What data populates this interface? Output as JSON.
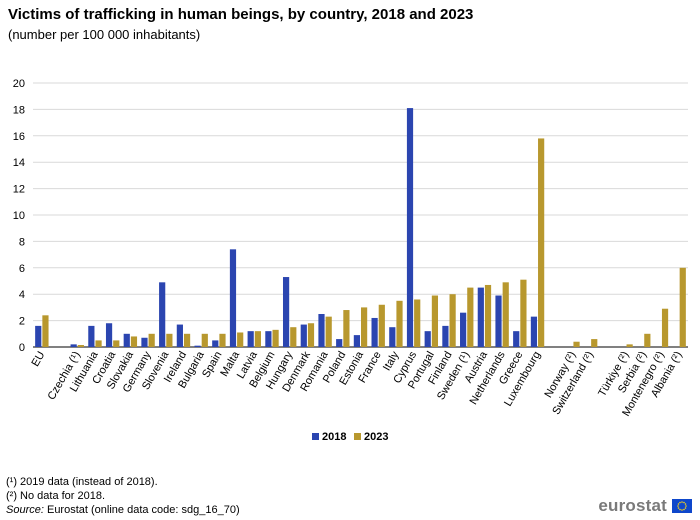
{
  "title": "Victims of trafficking in human beings, by country, 2018 and 2023",
  "subtitle": "(number  per 100 000 inhabitants)",
  "notes": {
    "note1": "(¹) 2019 data (instead of 2018).",
    "note2": "(²) No data for 2018.",
    "source_label": "Source:",
    "source_text": " Eurostat (online data code: sdg_16_70)"
  },
  "logo": {
    "text": "eurostat",
    "flag_icon": "eu-flag-icon"
  },
  "colors": {
    "s2018": "#2b45b0",
    "s2023": "#b8982e",
    "grid": "#d9d9d9",
    "axis": "#000000"
  },
  "chart_data": {
    "type": "bar",
    "title": "Victims of trafficking in human beings, by country, 2018 and 2023",
    "ylabel": "number per 100 000 inhabitants",
    "ylim": [
      0,
      20
    ],
    "yticks": [
      0,
      2,
      4,
      6,
      8,
      10,
      12,
      14,
      16,
      18,
      20
    ],
    "grid": true,
    "legend_position": "bottom-center",
    "categories": [
      "EU",
      "",
      "Czechia (¹)",
      "Lithuania",
      "Croatia",
      "Slovakia",
      "Germany",
      "Slovenia",
      "Ireland",
      "Bulgaria",
      "Spain",
      "Malta",
      "Latvia",
      "Belgium",
      "Hungary",
      "Denmark",
      "Romania",
      "Poland",
      "Estonia",
      "France",
      "Italy",
      "Cyprus",
      "Portugal",
      "Finland",
      "Sweden (¹)",
      "Austria",
      "Netherlands",
      "Greece",
      "Luxembourg",
      "",
      "Norway (²)",
      "Switzerland (²)",
      "",
      "Türkiye (²)",
      "Serbia (²)",
      "Montenegro (²)",
      "Albania (²)"
    ],
    "series": [
      {
        "name": "2018",
        "values": [
          1.6,
          null,
          0.2,
          1.6,
          1.8,
          1.0,
          0.7,
          4.9,
          1.7,
          0.1,
          0.5,
          7.4,
          1.2,
          1.2,
          5.3,
          1.7,
          2.5,
          0.6,
          0.9,
          2.2,
          1.5,
          18.1,
          1.2,
          1.6,
          2.6,
          4.5,
          3.9,
          1.2,
          2.3,
          null,
          null,
          null,
          null,
          null,
          null,
          null,
          null
        ]
      },
      {
        "name": "2023",
        "values": [
          2.4,
          null,
          0.15,
          0.5,
          0.5,
          0.8,
          1.0,
          1.0,
          1.0,
          1.0,
          1.0,
          1.1,
          1.2,
          1.3,
          1.5,
          1.8,
          2.3,
          2.8,
          3.0,
          3.2,
          3.5,
          3.6,
          3.9,
          4.0,
          4.5,
          4.7,
          4.9,
          5.1,
          15.8,
          null,
          0.4,
          0.6,
          null,
          0.2,
          1.0,
          2.9,
          6.0
        ]
      }
    ]
  }
}
